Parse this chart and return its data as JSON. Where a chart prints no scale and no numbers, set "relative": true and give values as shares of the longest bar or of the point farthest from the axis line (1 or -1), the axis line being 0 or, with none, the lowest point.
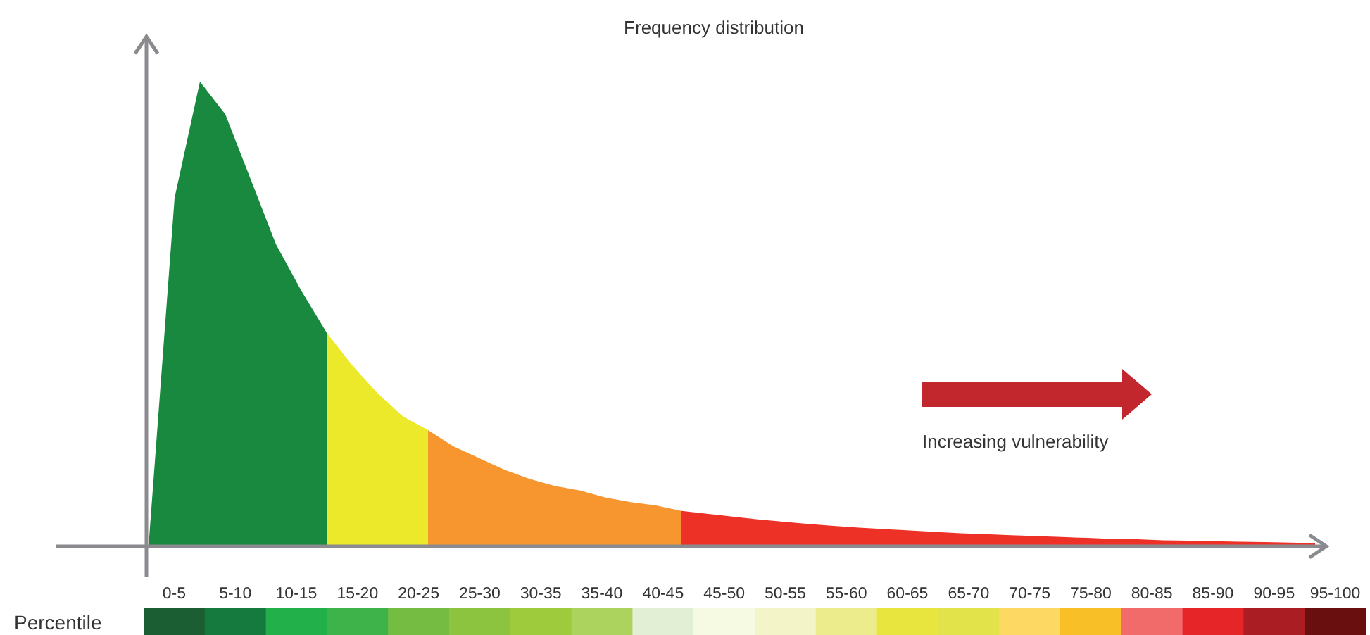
{
  "chart_data": [
    {
      "type": "area",
      "title": "Frequency distribution",
      "relative": true,
      "annotations": [
        "Increasing vulnerability"
      ],
      "categories": [
        null,
        null,
        null,
        null,
        null,
        null,
        null,
        null,
        null,
        null,
        null,
        null,
        null,
        null,
        null,
        null,
        null,
        null,
        null,
        null,
        null,
        null,
        null,
        null,
        null,
        null,
        null,
        null,
        null,
        null,
        null,
        null,
        null,
        null,
        null,
        null,
        null,
        null,
        null,
        null,
        null,
        null,
        null,
        null,
        null,
        null,
        null
      ],
      "series": [
        {
          "color": "#19893f",
          "values": [
            0.02,
            0.75,
            1.0,
            0.93,
            0.79,
            0.65,
            0.55,
            0.46,
            null,
            null,
            null,
            null,
            null,
            null,
            null,
            null,
            null,
            null,
            null,
            null,
            null,
            null,
            null,
            null,
            null,
            null,
            null,
            null,
            null,
            null,
            null,
            null,
            null,
            null,
            null,
            null,
            null,
            null,
            null,
            null,
            null,
            null,
            null,
            null,
            null,
            null,
            null
          ]
        },
        {
          "color": "#ece82a",
          "values": [
            null,
            null,
            null,
            null,
            null,
            null,
            null,
            0.46,
            0.39,
            0.33,
            0.28,
            0.25,
            null,
            null,
            null,
            null,
            null,
            null,
            null,
            null,
            null,
            null,
            null,
            null,
            null,
            null,
            null,
            null,
            null,
            null,
            null,
            null,
            null,
            null,
            null,
            null,
            null,
            null,
            null,
            null,
            null,
            null,
            null,
            null,
            null,
            null,
            null
          ]
        },
        {
          "color": "#f7962e",
          "values": [
            null,
            null,
            null,
            null,
            null,
            null,
            null,
            null,
            null,
            null,
            null,
            0.25,
            0.215,
            0.19,
            0.165,
            0.145,
            0.13,
            0.12,
            0.105,
            0.095,
            0.088,
            0.076,
            null,
            null,
            null,
            null,
            null,
            null,
            null,
            null,
            null,
            null,
            null,
            null,
            null,
            null,
            null,
            null,
            null,
            null,
            null,
            null,
            null,
            null,
            null,
            null,
            null
          ]
        },
        {
          "color": "#ee3127",
          "values": [
            null,
            null,
            null,
            null,
            null,
            null,
            null,
            null,
            null,
            null,
            null,
            null,
            null,
            null,
            null,
            null,
            null,
            null,
            null,
            null,
            null,
            0.076,
            0.07,
            0.064,
            0.058,
            0.053,
            0.048,
            0.044,
            0.04,
            0.037,
            0.034,
            0.031,
            0.028,
            0.026,
            0.024,
            0.022,
            0.02,
            0.018,
            0.016,
            0.015,
            0.013,
            0.012,
            0.011,
            0.01,
            0.009,
            0.008,
            0.007
          ]
        }
      ]
    },
    {
      "type": "other",
      "ylabel": "Percentile",
      "categories": [
        "0-5",
        "5-10",
        "10-15",
        "15-20",
        "20-25",
        "25-30",
        "30-35",
        "35-40",
        "40-45",
        "45-50",
        "50-55",
        "55-60",
        "60-65",
        "65-70",
        "70-75",
        "75-80",
        "80-85",
        "85-90",
        "90-95",
        "95-100"
      ],
      "colors": [
        "#1b5e34",
        "#157a3d",
        "#22b04b",
        "#3db34a",
        "#74bd42",
        "#8cc43f",
        "#9dcb3c",
        "#acd35e",
        "#e2efd4",
        "#f7fae3",
        "#f3f4c7",
        "#ecec8d",
        "#e9e53f",
        "#e2e34b",
        "#fdd862",
        "#f8bf26",
        "#f26b6b",
        "#e52527",
        "#a91d23",
        "#6a0f10"
      ]
    }
  ]
}
